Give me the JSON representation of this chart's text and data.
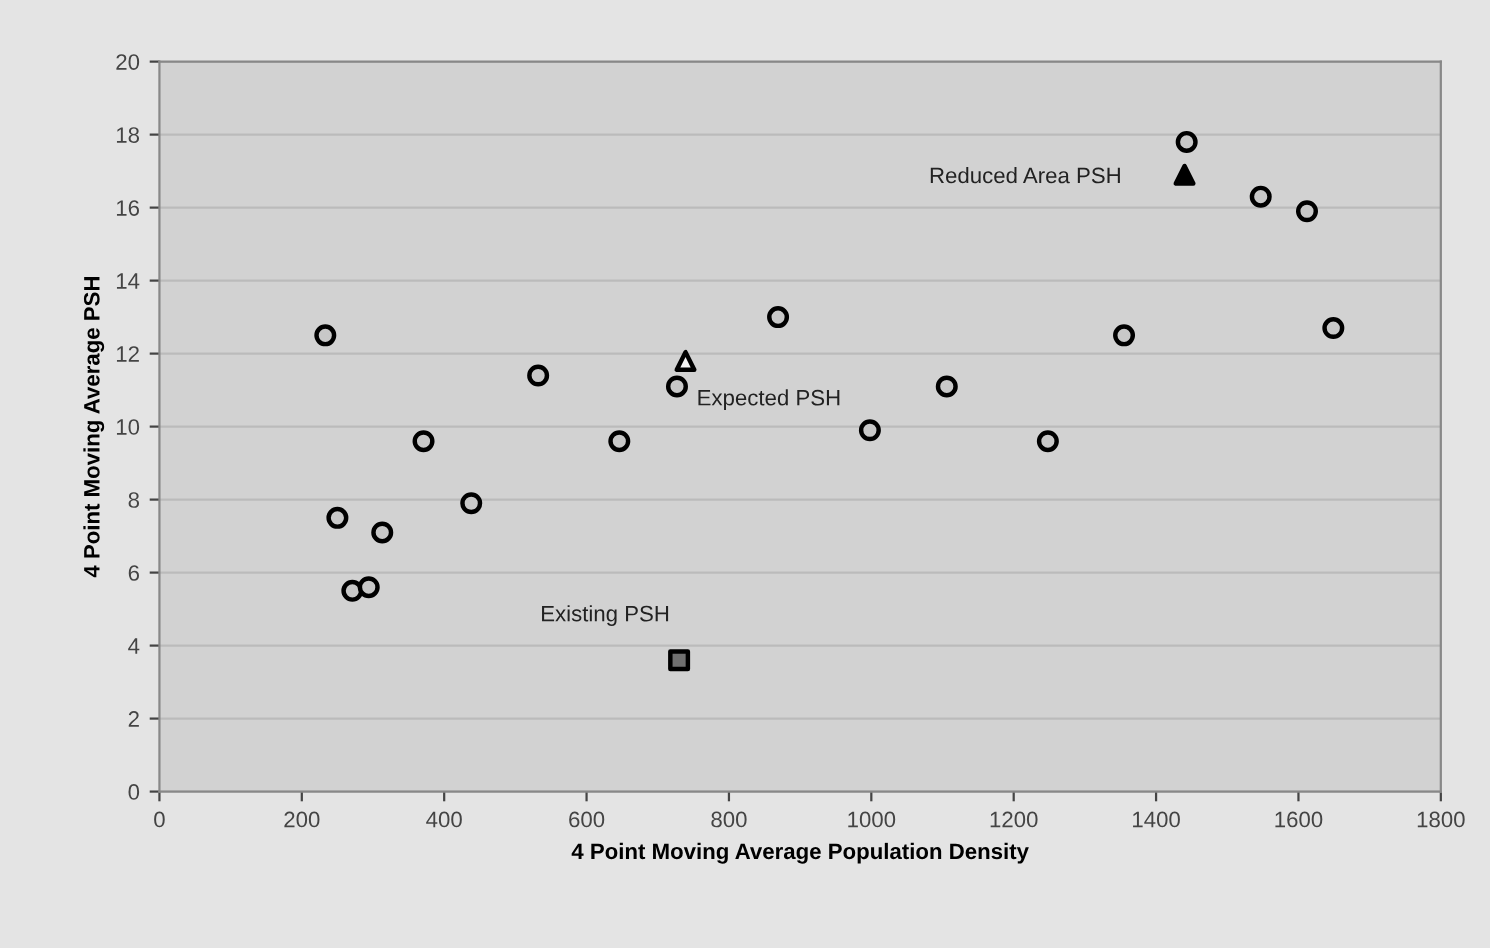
{
  "chart_data": {
    "type": "scatter",
    "xlabel": "4 Point Moving Average Population Density",
    "ylabel": "4 Point Moving Average PSH",
    "xlim": [
      0,
      1800
    ],
    "xticks": [
      0,
      200,
      400,
      600,
      800,
      1000,
      1200,
      1400,
      1600,
      1800
    ],
    "ylim": [
      0,
      20
    ],
    "yticks": [
      0,
      2,
      4,
      6,
      8,
      10,
      12,
      14,
      16,
      18,
      20
    ],
    "grid": "y",
    "legend": false,
    "series": [
      {
        "color": "#c8c8c8",
        "marker": "circle",
        "x": [
          233,
          250,
          271,
          294,
          313,
          371,
          438,
          532,
          646,
          727,
          869,
          998,
          1106,
          1248,
          1355,
          1443,
          1547,
          1612,
          1649
        ],
        "values": [
          12.5,
          7.5,
          5.5,
          5.6,
          7.1,
          9.6,
          7.9,
          11.4,
          9.6,
          11.1,
          13.0,
          9.9,
          11.1,
          9.6,
          12.5,
          17.8,
          16.3,
          15.9,
          12.7
        ]
      },
      {
        "name": "Existing PSH",
        "color": "#707070",
        "marker": "square",
        "x": [
          730
        ],
        "values": [
          3.6
        ]
      },
      {
        "name": "Expected PSH",
        "color": "#f5f5f5",
        "marker": "triangle",
        "x": [
          739
        ],
        "values": [
          11.8
        ]
      },
      {
        "name": "Reduced Area PSH",
        "color": "#000000",
        "marker": "triangle",
        "x": [
          1440
        ],
        "values": [
          16.9
        ]
      }
    ]
  }
}
